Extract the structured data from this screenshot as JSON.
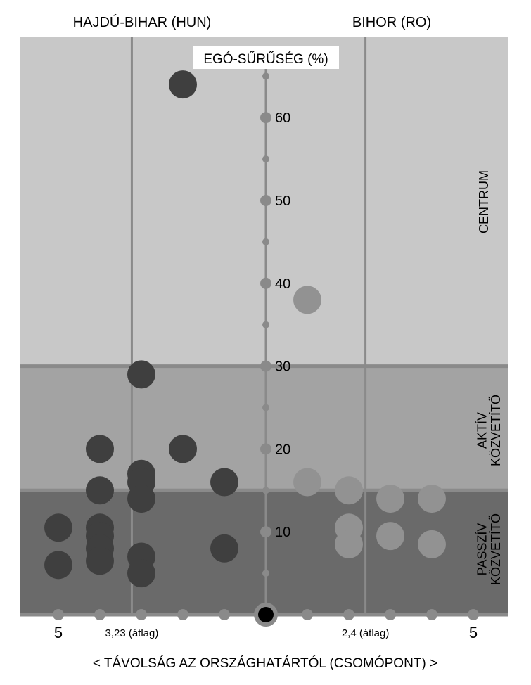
{
  "chart_data": {
    "type": "scatter",
    "title": "",
    "left_region_label": "HAJDÚ-BIHAR (HUN)",
    "right_region_label": "BIHOR (RO)",
    "ylabel": "EGÓ-SŰRŰSÉG (%)",
    "xlabel": "< TÁVOLSÁG AZ ORSZÁGHATÁRTÓL (CSOMÓPONT) >",
    "ylim": [
      0,
      70
    ],
    "y_ticks": [
      10,
      20,
      30,
      40,
      50,
      60
    ],
    "x_ticks": [
      {
        "value": -5,
        "label": "5"
      },
      {
        "value": -4,
        "label": ""
      },
      {
        "value": -3,
        "label": ""
      },
      {
        "value": -2,
        "label": ""
      },
      {
        "value": -1,
        "label": ""
      },
      {
        "value": 0,
        "label": ""
      },
      {
        "value": 1,
        "label": ""
      },
      {
        "value": 2,
        "label": ""
      },
      {
        "value": 3,
        "label": ""
      },
      {
        "value": 4,
        "label": ""
      },
      {
        "value": 5,
        "label": "5"
      }
    ],
    "averages": [
      {
        "value": -3.23,
        "label": "3,23 (átlag)"
      },
      {
        "value": 2.4,
        "label": "2,4 (átlag)"
      }
    ],
    "zones": [
      {
        "name": "CENTRUM",
        "from": 30,
        "to": 70,
        "color": "#c8c8c8"
      },
      {
        "name": "AKTÍV KÖZVETÍTŐ",
        "from": 15,
        "to": 30,
        "color": "#a3a3a3"
      },
      {
        "name": "PASSZÍV KÖZVETÍTŐ",
        "from": 0,
        "to": 15,
        "color": "#6a6a6a"
      }
    ],
    "series": [
      {
        "color": "#3f3f3f",
        "points": [
          {
            "x": -2,
            "y": 64
          },
          {
            "x": -3,
            "y": 29
          },
          {
            "x": -4,
            "y": 20
          },
          {
            "x": -2,
            "y": 20
          },
          {
            "x": -3,
            "y": 17
          },
          {
            "x": -3,
            "y": 16
          },
          {
            "x": -1,
            "y": 16
          },
          {
            "x": -4,
            "y": 15
          },
          {
            "x": -3,
            "y": 14
          },
          {
            "x": -5,
            "y": 10.5
          },
          {
            "x": -4,
            "y": 10.5
          },
          {
            "x": -4,
            "y": 9.5
          },
          {
            "x": -4,
            "y": 8
          },
          {
            "x": -1,
            "y": 8
          },
          {
            "x": -4,
            "y": 6.5
          },
          {
            "x": -3,
            "y": 7
          },
          {
            "x": -5,
            "y": 6
          },
          {
            "x": -3,
            "y": 5
          }
        ]
      },
      {
        "color": "#929292",
        "points": [
          {
            "x": 1,
            "y": 38
          },
          {
            "x": 1,
            "y": 16
          },
          {
            "x": 2,
            "y": 15
          },
          {
            "x": 3,
            "y": 14
          },
          {
            "x": 4,
            "y": 14
          },
          {
            "x": 2,
            "y": 10.5
          },
          {
            "x": 3,
            "y": 9.5
          },
          {
            "x": 2,
            "y": 8.5
          },
          {
            "x": 4,
            "y": 8.5
          }
        ]
      }
    ],
    "origin_marker_color": "#000000"
  }
}
